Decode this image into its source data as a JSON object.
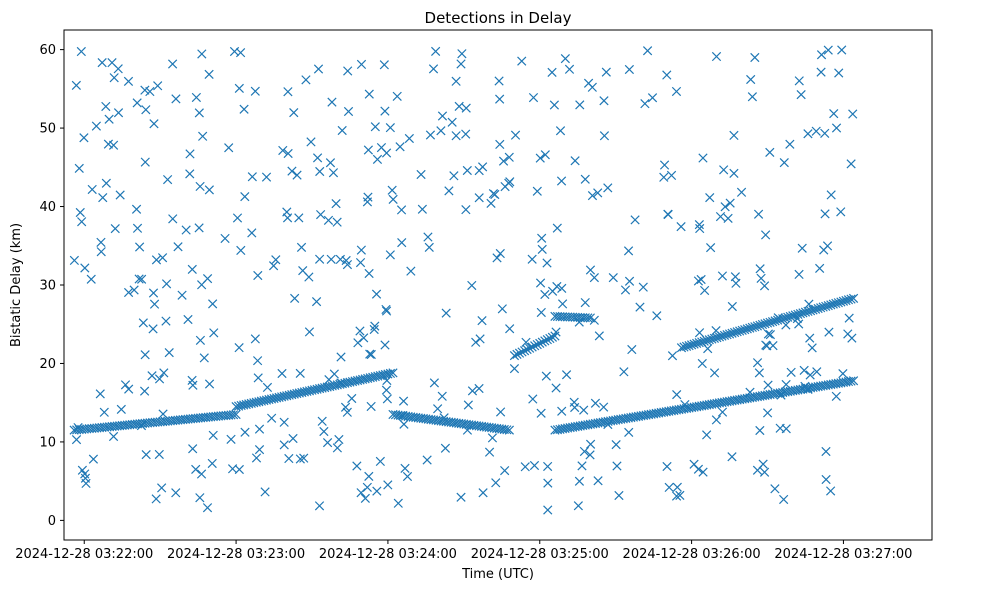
{
  "chart_data": {
    "type": "scatter",
    "title": "Detections in Delay",
    "xlabel": "Time (UTC)",
    "ylabel": "Bistatic Delay (km)",
    "marker": "x",
    "color": "#1f77b4",
    "xlim_seconds_after_032200": [
      -8,
      335
    ],
    "ylim": [
      -2.5,
      62.5
    ],
    "x_ticks": [
      {
        "value": 0,
        "label": "2024-12-28 03:22:00"
      },
      {
        "value": 60,
        "label": "2024-12-28 03:23:00"
      },
      {
        "value": 120,
        "label": "2024-12-28 03:24:00"
      },
      {
        "value": 180,
        "label": "2024-12-28 03:25:00"
      },
      {
        "value": 240,
        "label": "2024-12-28 03:26:00"
      },
      {
        "value": 300,
        "label": "2024-12-28 03:27:00"
      }
    ],
    "y_ticks": [
      0,
      10,
      20,
      30,
      40,
      50,
      60
    ],
    "tracks": [
      {
        "name": "track-a",
        "x_range_s": [
          -4,
          60
        ],
        "y_range_km": [
          11.5,
          13.5
        ],
        "spacing_s": 1.0
      },
      {
        "name": "track-b",
        "x_range_s": [
          60,
          122
        ],
        "y_range_km": [
          14.5,
          18.8
        ],
        "spacing_s": 1.0
      },
      {
        "name": "track-c",
        "x_range_s": [
          122,
          168
        ],
        "y_range_km": [
          13.5,
          11.5
        ],
        "spacing_s": 1.0
      },
      {
        "name": "track-d",
        "x_range_s": [
          186,
          304
        ],
        "y_range_km": [
          11.5,
          17.8
        ],
        "spacing_s": 1.0
      },
      {
        "name": "track-e",
        "x_range_s": [
          236,
          304
        ],
        "y_range_km": [
          22.0,
          28.3
        ],
        "spacing_s": 1.0
      },
      {
        "name": "track-f",
        "x_range_s": [
          170,
          186
        ],
        "y_range_km": [
          21.0,
          23.5
        ],
        "spacing_s": 1.0
      },
      {
        "name": "track-g",
        "x_range_s": [
          186,
          200
        ],
        "y_range_km": [
          26.0,
          25.8
        ],
        "spacing_s": 1.0
      }
    ],
    "clutter": {
      "count": 520,
      "x_range_s": [
        -4,
        305
      ],
      "y_range_km": [
        1,
        60
      ],
      "seed": 1337
    }
  }
}
